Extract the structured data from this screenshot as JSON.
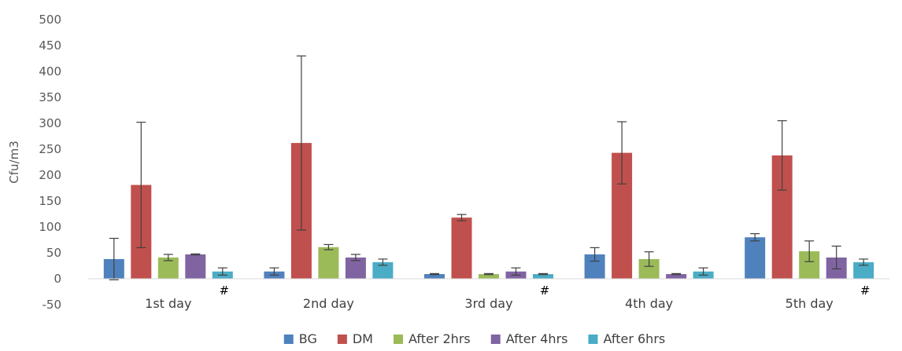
{
  "chart_data": {
    "type": "bar",
    "title": "",
    "xlabel": "",
    "ylabel": "Cfu/m3",
    "ylim": [
      -50,
      500
    ],
    "yticks": [
      -50,
      0,
      50,
      100,
      150,
      200,
      250,
      300,
      350,
      400,
      450,
      500
    ],
    "grid": false,
    "legend_position": "bottom",
    "categories": [
      "1st day",
      "2nd day",
      "3rd day",
      "4th day",
      "5th day"
    ],
    "series": [
      {
        "name": "BG",
        "color": "#4f81bd",
        "values": [
          38,
          14,
          9,
          47,
          80
        ],
        "errors": [
          40,
          7,
          1,
          13,
          7
        ]
      },
      {
        "name": "DM",
        "color": "#c0504d",
        "values": [
          181,
          262,
          118,
          243,
          238
        ],
        "errors": [
          121,
          168,
          6,
          60,
          67
        ]
      },
      {
        "name": "After 2hrs",
        "color": "#9bbb59",
        "values": [
          41,
          61,
          9,
          38,
          53
        ],
        "errors": [
          6,
          5,
          1,
          14,
          20
        ]
      },
      {
        "name": "After 4hrs",
        "color": "#8064a2",
        "values": [
          47,
          41,
          14,
          9,
          41
        ],
        "errors": [
          1,
          6,
          7,
          1,
          22
        ]
      },
      {
        "name": "After 6hrs",
        "color": "#4bacc6",
        "values": [
          14,
          32,
          9,
          14,
          32
        ],
        "errors": [
          7,
          6,
          1,
          7,
          6
        ]
      }
    ],
    "annotations": [
      {
        "category": "1st day",
        "text": "#"
      },
      {
        "category": "3rd day",
        "text": "#"
      },
      {
        "category": "5th day",
        "text": "#"
      }
    ]
  }
}
